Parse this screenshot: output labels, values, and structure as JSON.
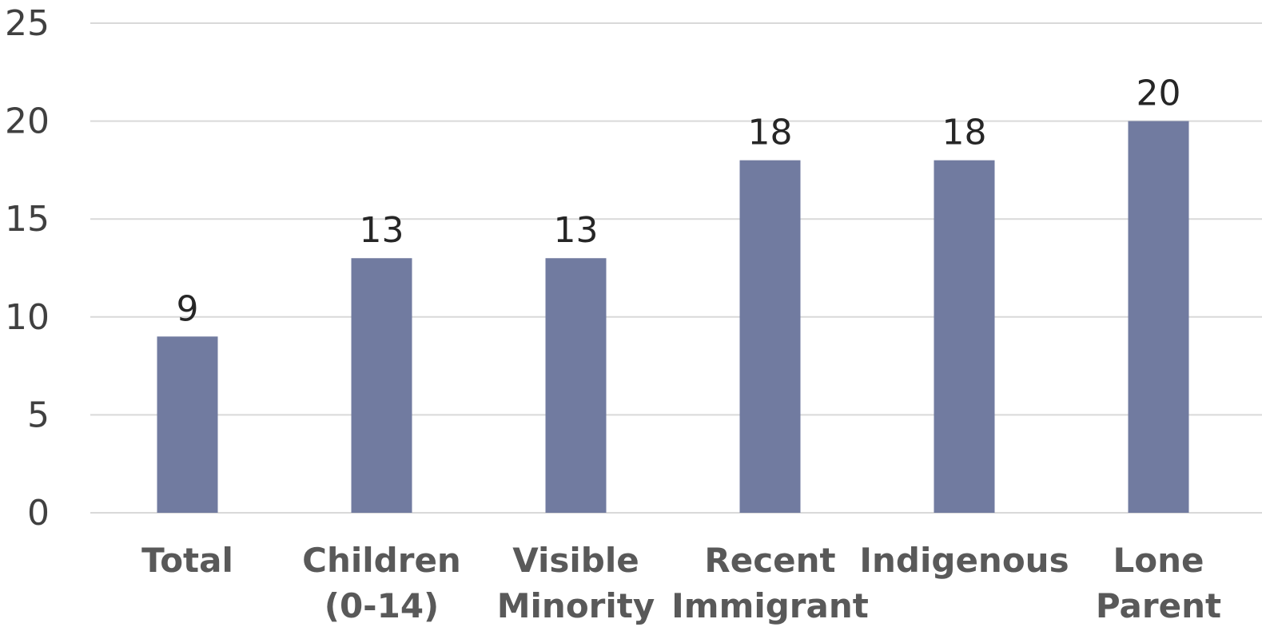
{
  "chart_data": {
    "type": "bar",
    "categories": [
      [
        "Total"
      ],
      [
        "Children",
        "(0-14)"
      ],
      [
        "Visible",
        "Minority"
      ],
      [
        "Recent",
        "Immigrant"
      ],
      [
        "Indigenous"
      ],
      [
        "Lone",
        "Parent"
      ]
    ],
    "values": [
      9,
      13,
      13,
      18,
      18,
      20
    ],
    "ylim": [
      0,
      25
    ],
    "yticks": [
      0,
      5,
      10,
      15,
      20,
      25
    ],
    "bar_color": "#717ba0",
    "grid": true,
    "data_labels": true,
    "title": "",
    "xlabel": "",
    "ylabel": ""
  }
}
